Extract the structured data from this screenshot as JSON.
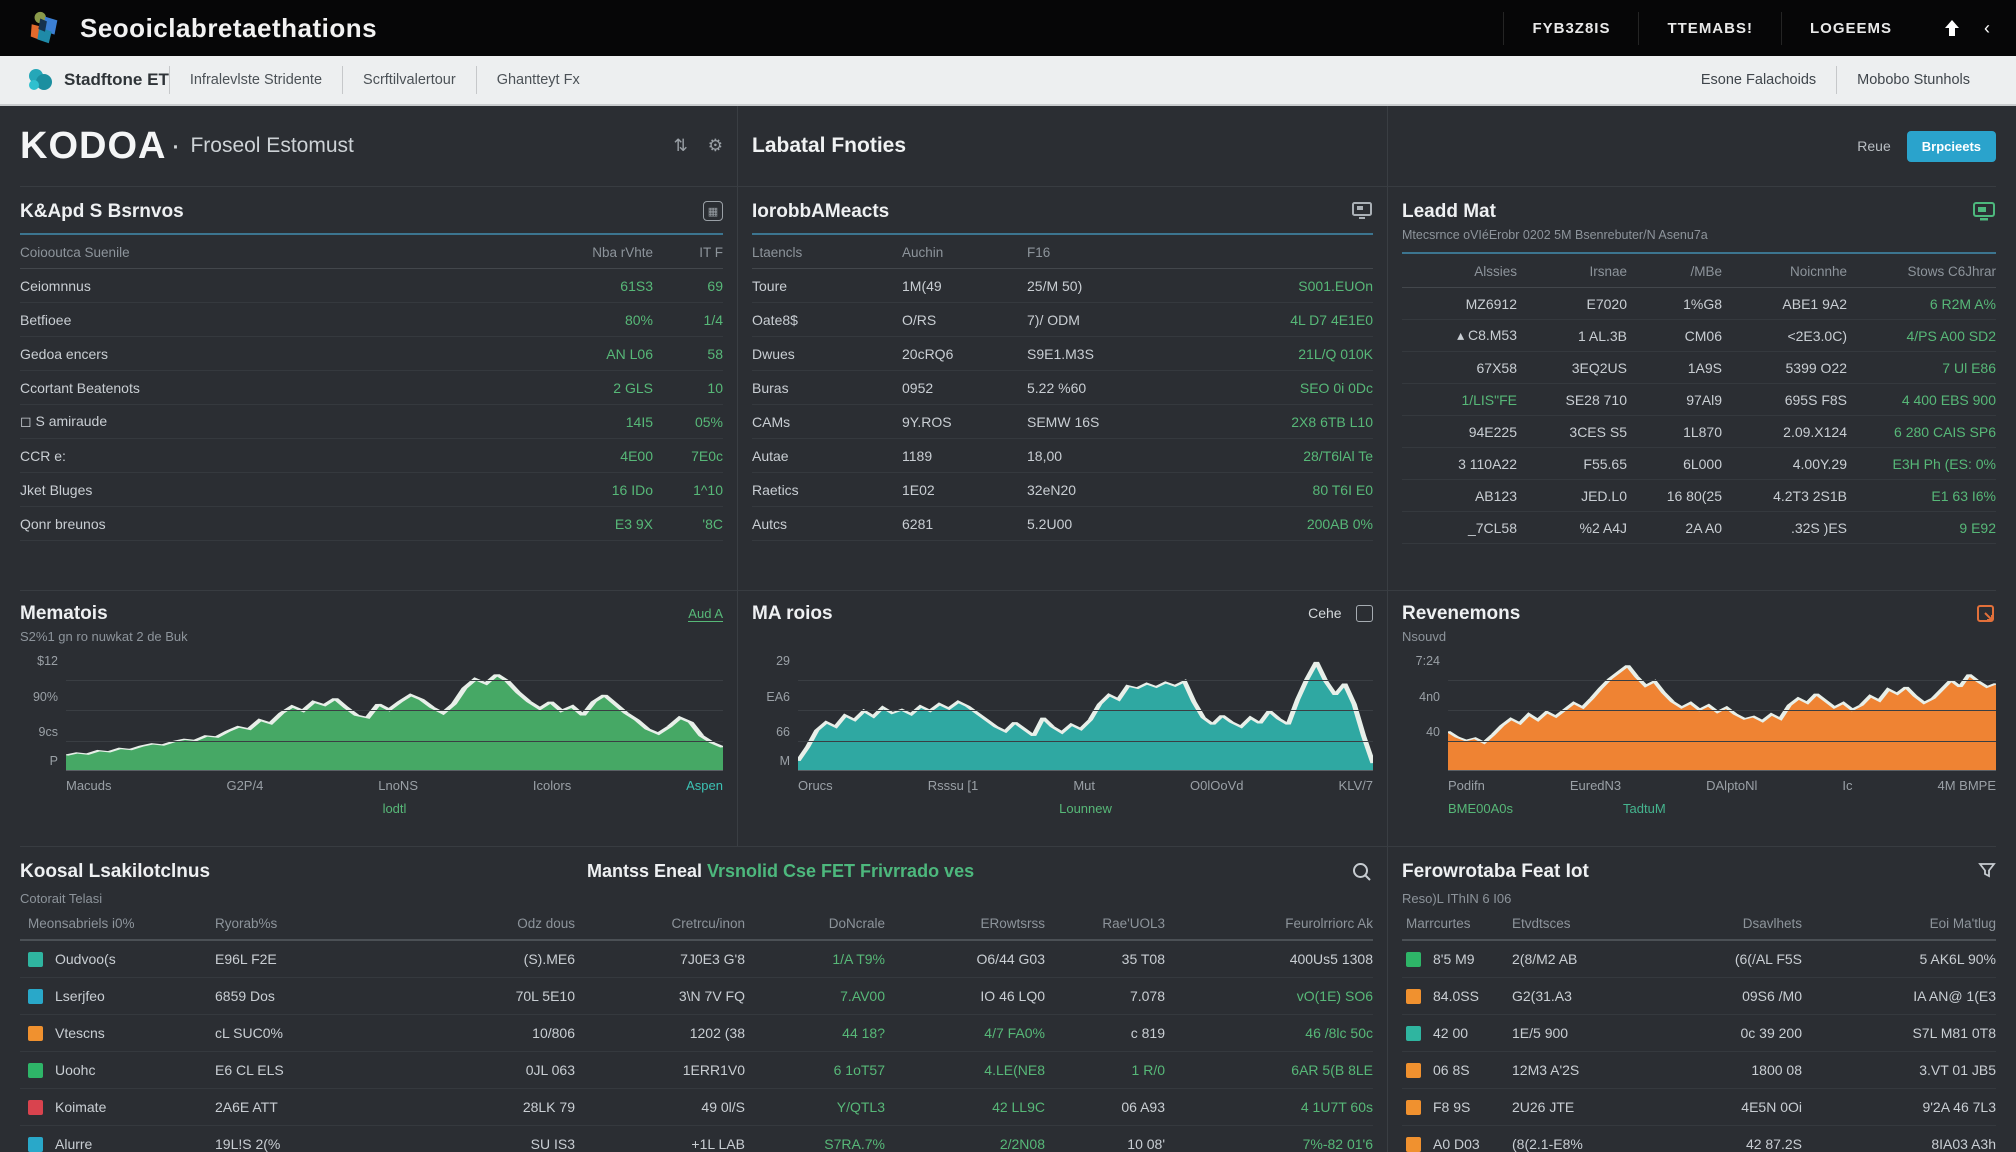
{
  "topnav": {
    "title": "Seooiclabretaethations",
    "items": [
      "FYB3Z8IS",
      "TTEMABS!",
      "LOGEEMS"
    ]
  },
  "subnav": {
    "brand": "Stadftone ET",
    "items": [
      "Infralevlste Stridente",
      "Scrftilvalertour",
      "Ghantteyt Fx"
    ],
    "right_items": [
      "Esone Falachoids",
      "Mobobo Stunhols"
    ]
  },
  "page_header": {
    "title": "KODOA",
    "separator": "·",
    "subtitle": "Froseol Estomust",
    "middle_title": "Labatal Fnoties",
    "right_label": "Reue",
    "button_label": "Brpcieets"
  },
  "kpi": {
    "title": "K&Apd S Bsrnvos",
    "headers": [
      "Coiooutca Suenile",
      "Nba rVhte",
      "IT F"
    ],
    "rows": [
      {
        "cells": [
          [
            "Ceiomnnus"
          ],
          [
            "61S3",
            "green"
          ],
          [
            "69",
            "green"
          ]
        ]
      },
      {
        "cells": [
          [
            "Betfioee"
          ],
          [
            "80%",
            "green"
          ],
          [
            "1/4",
            "green"
          ]
        ]
      },
      {
        "cells": [
          [
            "Gedoa encers"
          ],
          [
            "AN L06",
            "green"
          ],
          [
            "58",
            "green"
          ]
        ]
      },
      {
        "cells": [
          [
            "Ccortant Beatenots"
          ],
          [
            "2 GLS",
            "green"
          ],
          [
            "10",
            "green"
          ]
        ]
      },
      {
        "cells": [
          [
            "◻ S amiraude"
          ],
          [
            "14I5",
            "green"
          ],
          [
            "05%",
            "green"
          ]
        ]
      },
      {
        "cells": [
          [
            "CCR e:"
          ],
          [
            "4E00",
            "green"
          ],
          [
            "7E0c",
            "green"
          ]
        ]
      },
      {
        "cells": [
          [
            "Jket Bluges"
          ],
          [
            "16 IDo",
            "green"
          ],
          [
            "1^10",
            "green"
          ]
        ]
      },
      {
        "cells": [
          [
            "Qonr breunos"
          ],
          [
            "E3 9X",
            "green"
          ],
          [
            "'8C",
            "green"
          ]
        ]
      }
    ]
  },
  "markets": {
    "title": "IorobbAMeacts",
    "headers": [
      "Ltaencls",
      "Auchin",
      "F16",
      ""
    ],
    "rows": [
      {
        "cells": [
          [
            "Toure"
          ],
          [
            "1M(49"
          ],
          [
            "25/M 50)"
          ],
          [
            "S001.EUOn",
            "green"
          ]
        ]
      },
      {
        "cells": [
          [
            "Oate8$"
          ],
          [
            "O/RS"
          ],
          [
            "7)/ ODM"
          ],
          [
            "4L D7 4E1E0",
            "green"
          ]
        ]
      },
      {
        "cells": [
          [
            "Dwues"
          ],
          [
            "20cRQ6"
          ],
          [
            "S9E1.M3S"
          ],
          [
            "21L/Q 010K",
            "green"
          ]
        ]
      },
      {
        "cells": [
          [
            "Buras"
          ],
          [
            "0952"
          ],
          [
            "5.22 %60"
          ],
          [
            "SEO 0i 0Dc",
            "green"
          ]
        ]
      },
      {
        "cells": [
          [
            "CAMs"
          ],
          [
            "9Y.ROS"
          ],
          [
            "SEMW 16S"
          ],
          [
            "2X8 6TB L10",
            "green"
          ]
        ]
      },
      {
        "cells": [
          [
            "Autae"
          ],
          [
            "1189"
          ],
          [
            "18,00"
          ],
          [
            "28/T6lAl Te",
            "green"
          ]
        ]
      },
      {
        "cells": [
          [
            "Raetics"
          ],
          [
            "1E02"
          ],
          [
            "32eN20"
          ],
          [
            "80 T6I E0",
            "green"
          ]
        ]
      },
      {
        "cells": [
          [
            "Autcs"
          ],
          [
            "6281"
          ],
          [
            "5.2U00"
          ],
          [
            "200AB 0%",
            "green"
          ]
        ]
      }
    ]
  },
  "lead": {
    "title": "Leadd Mat",
    "subtitle": "Mtecsrnce oVIéErobr 0202 5M Bsenrebuter/N Asenu7a",
    "headers": [
      "Alssies",
      "Irsnae",
      "/MBe",
      "Noicnnhe",
      "Stows C6Jhrar"
    ],
    "rows": [
      {
        "cells": [
          [
            "MZ6912"
          ],
          [
            "E7020"
          ],
          [
            "1%G8"
          ],
          [
            "ABE1 9A2"
          ],
          [
            "6 R2M A%",
            "green"
          ]
        ]
      },
      {
        "cells": [
          [
            "▴ C8.M53"
          ],
          [
            "1 AL.3B"
          ],
          [
            "CM06"
          ],
          [
            "<2E3.0C)"
          ],
          [
            "4/PS A00 SD2",
            "green"
          ]
        ]
      },
      {
        "cells": [
          [
            "67X58"
          ],
          [
            "3EQ2US"
          ],
          [
            "1A9S"
          ],
          [
            "5399 O22"
          ],
          [
            "7 Ul E86",
            "green"
          ]
        ]
      },
      {
        "cells": [
          [
            "1/LIS\"FE",
            "green"
          ],
          [
            "SE28 710"
          ],
          [
            "97Al9"
          ],
          [
            "695S F8S"
          ],
          [
            "4 400 EBS 900",
            "green"
          ]
        ]
      },
      {
        "cells": [
          [
            "94E225"
          ],
          [
            "3CES S5"
          ],
          [
            "1L870"
          ],
          [
            "2.09.X124"
          ],
          [
            "6 280 CAIS SP6",
            "green"
          ]
        ]
      },
      {
        "cells": [
          [
            "3 110A22"
          ],
          [
            "F55.65"
          ],
          [
            "6L000"
          ],
          [
            "4.00Y.29"
          ],
          [
            "E3H Ph (ES: 0%",
            "green"
          ]
        ]
      },
      {
        "cells": [
          [
            "AB123"
          ],
          [
            "JED.L0"
          ],
          [
            "16 80(25"
          ],
          [
            "4.2T3 2S1B"
          ],
          [
            "E1 63 I6%",
            "green"
          ]
        ]
      },
      {
        "cells": [
          [
            "_7CL58"
          ],
          [
            "%2 A4J"
          ],
          [
            "2A A0"
          ],
          [
            ".32S )ES"
          ],
          [
            "9 E92",
            "green"
          ]
        ]
      }
    ]
  },
  "chart_data": [
    {
      "type": "area",
      "title": "Mematois",
      "link_label": "Aud A",
      "subtitle": "S2%1 gn ro nuwkat 2 de Buk",
      "color": "#46a865",
      "y_ticks": [
        "$12",
        "90%",
        "9cs",
        "P"
      ],
      "x_ticks": [
        "Macuds",
        "G2P/4",
        "LnoNS",
        "Icolors",
        "Aspen"
      ],
      "x_accent_last": true,
      "footer_labels": [
        "lodtl"
      ],
      "ylim": [
        0,
        100
      ],
      "values": [
        13,
        15,
        14,
        17,
        16,
        19,
        18,
        21,
        23,
        22,
        25,
        27,
        26,
        30,
        29,
        34,
        38,
        36,
        44,
        41,
        50,
        56,
        52,
        60,
        57,
        63,
        55,
        48,
        46,
        58,
        53,
        60,
        66,
        62,
        55,
        50,
        58,
        72,
        80,
        76,
        84,
        78,
        68,
        60,
        54,
        60,
        52,
        56,
        48,
        60,
        66,
        58,
        50,
        44,
        36,
        32,
        38,
        46,
        42,
        30,
        24,
        20
      ]
    },
    {
      "type": "area",
      "title": "MA roios",
      "checkbox_label": "Cehe",
      "subtitle": "",
      "color": "#2fa8a2",
      "y_ticks": [
        "29",
        "EA6",
        "66",
        "M"
      ],
      "x_ticks": [
        "Orucs",
        "Rsssu [1",
        "Mut",
        "O0lOoVd",
        "KLV/7"
      ],
      "x_accent_last": false,
      "footer_labels": [
        "Lounnew"
      ],
      "ylim": [
        0,
        100
      ],
      "values": [
        8,
        20,
        35,
        42,
        38,
        48,
        44,
        52,
        47,
        55,
        50,
        53,
        49,
        56,
        52,
        58,
        54,
        60,
        56,
        50,
        44,
        38,
        34,
        42,
        36,
        30,
        46,
        38,
        33,
        40,
        36,
        44,
        58,
        66,
        62,
        74,
        72,
        76,
        73,
        77,
        74,
        78,
        60,
        46,
        40,
        48,
        42,
        38,
        46,
        41,
        52,
        45,
        40,
        62,
        80,
        95,
        78,
        66,
        76,
        58,
        30,
        6
      ]
    },
    {
      "type": "area",
      "title": "Revenemons",
      "subtitle": "Nsouvd",
      "color": "#ef8333",
      "y_ticks": [
        "7:24",
        "4n0",
        "40"
      ],
      "x_ticks": [
        "Podifn",
        "EuredN3",
        "DAlptoNl",
        "Ic",
        "4M BMPE"
      ],
      "x_accent_last": false,
      "footer_labels": [
        "BME00A0s",
        "TadtuM"
      ],
      "ylim": [
        0,
        100
      ],
      "values": [
        34,
        29,
        26,
        28,
        24,
        31,
        39,
        45,
        41,
        49,
        44,
        51,
        47,
        53,
        59,
        55,
        63,
        72,
        80,
        86,
        92,
        82,
        74,
        78,
        68,
        60,
        55,
        59,
        53,
        57,
        51,
        55,
        49,
        45,
        47,
        43,
        49,
        45,
        57,
        63,
        59,
        67,
        61,
        55,
        59,
        53,
        57,
        65,
        61,
        71,
        67,
        73,
        65,
        59,
        63,
        71,
        79,
        73,
        84,
        78,
        73,
        76
      ]
    }
  ],
  "bottom": {
    "left_title": "Koosal Lsakilotclnus",
    "left_subtitle": "Cotorait Telasi",
    "center_title_white": "Mantss Eneal ",
    "center_title_green": "Vrsnolid Cse FET Frivrrado ves",
    "headers": [
      "Meonsabriels i0%",
      "Ryorab%s",
      "Odz dous",
      "Cretrcu/inon",
      "DoNcrale",
      "ERowtsrss",
      "Rae'UOL3",
      "Feurolrriorc Ak"
    ],
    "rows": [
      {
        "color": "#2fb5a0",
        "cells": [
          [
            "Oudvoo(s"
          ],
          [
            "E96L F2E"
          ],
          [
            "(S).ME6"
          ],
          [
            "7J0E3 G'8"
          ],
          [
            "1/A T9%",
            "green"
          ],
          [
            "O6/44 G03"
          ],
          [
            "35 T08"
          ],
          [
            "400Us5 1308"
          ]
        ]
      },
      {
        "color": "#29a8c9",
        "cells": [
          [
            "Lserjfeo"
          ],
          [
            "6859 Dos"
          ],
          [
            "70L 5E10"
          ],
          [
            "3\\N 7V FQ"
          ],
          [
            "7.AV00",
            "green"
          ],
          [
            "IO 46 LQ0"
          ],
          [
            "7.078"
          ],
          [
            "vO(1E) SO6",
            "green"
          ]
        ]
      },
      {
        "color": "#f0912f",
        "cells": [
          [
            "Vtescns"
          ],
          [
            "cL SUC0%"
          ],
          [
            "10/806"
          ],
          [
            "1202 (38"
          ],
          [
            "44 18?",
            "green"
          ],
          [
            "4/7 FA0%",
            "green"
          ],
          [
            "c 819"
          ],
          [
            "46 /8lc 50c",
            "green"
          ]
        ]
      },
      {
        "color": "#2eb568",
        "cells": [
          [
            "Uoohc"
          ],
          [
            "E6 CL ELS"
          ],
          [
            "0JL 063"
          ],
          [
            "1ERR1V0"
          ],
          [
            "6 1oT57",
            "green"
          ],
          [
            "4.LE(NE8",
            "green"
          ],
          [
            "1 R/0",
            "green"
          ],
          [
            "6AR 5(B 8LE",
            "green"
          ]
        ]
      },
      {
        "color": "#d9434e",
        "cells": [
          [
            "Koimate"
          ],
          [
            "2A6E ATT"
          ],
          [
            "28LK 79"
          ],
          [
            "49 0l/S"
          ],
          [
            "Y/QTL3",
            "green"
          ],
          [
            "42 LL9C",
            "green"
          ],
          [
            "06 A93"
          ],
          [
            "4 1U7T 60s",
            "green"
          ]
        ]
      },
      {
        "color": "#29a8c9",
        "cells": [
          [
            "Alurre"
          ],
          [
            "19L!S 2(%"
          ],
          [
            "SU IS3"
          ],
          [
            "+1L LAB"
          ],
          [
            "S7RA.7%",
            "green"
          ],
          [
            "2/2N08",
            "green"
          ],
          [
            "10 08'"
          ],
          [
            "7%-82 01'6",
            "green"
          ]
        ]
      }
    ]
  },
  "bottom_right": {
    "title": "Ferowrotaba Feat Iot",
    "subtitle": "Reso)L IThIN 6 I06",
    "headers": [
      "Marrcurtes",
      "Etvdtsces",
      "Dsavlhets",
      "Eoi Ma'tlug"
    ],
    "rows": [
      {
        "color": "#2eb568",
        "cells": [
          [
            "8'5 M9"
          ],
          [
            "2(8/M2 AB"
          ],
          [
            "(6(/AL F5S"
          ],
          [
            "5 AK6L 90%"
          ]
        ]
      },
      {
        "color": "#f0912f",
        "cells": [
          [
            "84.0SS"
          ],
          [
            "G2(31.A3"
          ],
          [
            "09S6 /M0"
          ],
          [
            "IA AN@ 1(E3"
          ]
        ]
      },
      {
        "color": "#2fb5a0",
        "cells": [
          [
            "42 00"
          ],
          [
            "1E/5 900"
          ],
          [
            "0c 39 200"
          ],
          [
            "S7L M81 0T8"
          ]
        ]
      },
      {
        "color": "#f0912f",
        "cells": [
          [
            "06 8S"
          ],
          [
            "12M3 A'2S"
          ],
          [
            "1800 08"
          ],
          [
            "3.VT 01 JB5"
          ]
        ]
      },
      {
        "color": "#f0912f",
        "cells": [
          [
            "F8 9S"
          ],
          [
            "2U26 JTE"
          ],
          [
            "4E5N 0Oi"
          ],
          [
            "9'2A 46 7L3"
          ]
        ]
      },
      {
        "color": "#f0912f",
        "cells": [
          [
            "A0 D03"
          ],
          [
            "(8(2.1-E8%"
          ],
          [
            "42 87.2S"
          ],
          [
            "8IA03 A3h"
          ]
        ]
      }
    ]
  }
}
